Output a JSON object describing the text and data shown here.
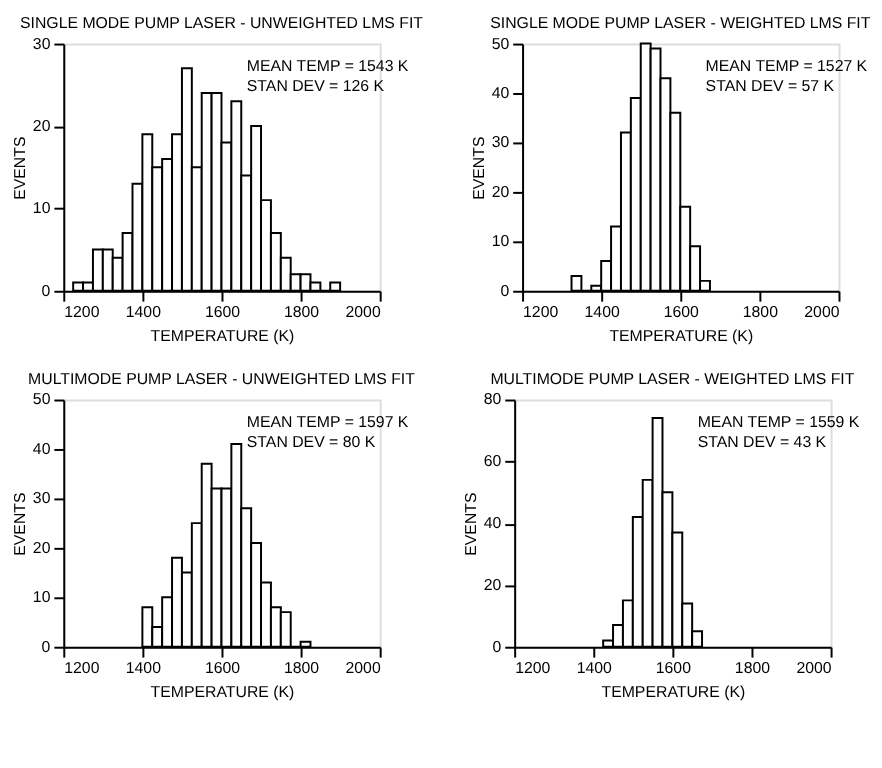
{
  "chart_data": [
    {
      "type": "histogram",
      "title": "SINGLE MODE PUMP LASER - UNWEIGHTED LMS FIT",
      "xlabel": "TEMPERATURE  (K)",
      "ylabel": "EVENTS",
      "annotations": [
        "MEAN TEMP = 1543 K",
        "STAN DEV = 126 K"
      ],
      "bins": [
        1225,
        1250,
        1275,
        1300,
        1325,
        1350,
        1375,
        1400,
        1425,
        1450,
        1475,
        1500,
        1525,
        1550,
        1575,
        1600,
        1625,
        1650,
        1675,
        1700,
        1725,
        1750,
        1775,
        1800,
        1825,
        1850,
        1875,
        1900
      ],
      "values": [
        1,
        1,
        5,
        5,
        4,
        7,
        13,
        19,
        15,
        16,
        19,
        27,
        15,
        24,
        24,
        18,
        23,
        14,
        20,
        11,
        7,
        4,
        2,
        2,
        1,
        0,
        1
      ],
      "color": "#ffffff",
      "xlim": [
        1200,
        2000
      ],
      "xticks": [
        1200,
        1400,
        1600,
        1800,
        2000
      ],
      "ylim": [
        0,
        30
      ],
      "yticks": [
        0,
        10,
        20,
        30
      ],
      "grid": false
    },
    {
      "type": "histogram",
      "title": "SINGLE MODE PUMP LASER - WEIGHTED LMS FIT",
      "xlabel": "TEMPERATURE  (K)",
      "ylabel": "EVENTS",
      "annotations": [
        "MEAN TEMP = 1527 K",
        "STAN DEV = 57 K"
      ],
      "bins": [
        1325,
        1350,
        1375,
        1400,
        1425,
        1450,
        1475,
        1500,
        1525,
        1550,
        1575,
        1600,
        1625,
        1650,
        1675
      ],
      "values": [
        3,
        0,
        1,
        6,
        13,
        32,
        39,
        50,
        49,
        43,
        36,
        17,
        9,
        2
      ],
      "color": "#ffffff",
      "xlim": [
        1200,
        2000
      ],
      "xticks": [
        1200,
        1400,
        1600,
        1800,
        2000
      ],
      "ylim": [
        0,
        50
      ],
      "yticks": [
        0,
        10,
        20,
        30,
        40,
        50
      ],
      "grid": false
    },
    {
      "type": "histogram",
      "title": "MULTIMODE PUMP LASER - UNWEIGHTED LMS FIT",
      "xlabel": "TEMPERATURE  (K)",
      "ylabel": "EVENTS",
      "annotations": [
        "MEAN TEMP = 1597 K",
        "STAN DEV = 80 K"
      ],
      "bins": [
        1400,
        1425,
        1450,
        1475,
        1500,
        1525,
        1550,
        1575,
        1600,
        1625,
        1650,
        1675,
        1700,
        1725,
        1750,
        1775,
        1800,
        1825
      ],
      "values": [
        8,
        4,
        10,
        18,
        15,
        25,
        37,
        32,
        32,
        41,
        28,
        21,
        13,
        8,
        7,
        0,
        1
      ],
      "color": "#ffffff",
      "xlim": [
        1200,
        2000
      ],
      "xticks": [
        1200,
        1400,
        1600,
        1800,
        2000
      ],
      "ylim": [
        0,
        50
      ],
      "yticks": [
        0,
        10,
        20,
        30,
        40,
        50
      ],
      "grid": false
    },
    {
      "type": "histogram",
      "title": "MULTIMODE PUMP LASER - WEIGHTED LMS FIT",
      "xlabel": "TEMPERATURE  (K)",
      "ylabel": "EVENTS",
      "annotations": [
        "MEAN TEMP = 1559 K",
        "STAN DEV = 43 K"
      ],
      "bins": [
        1425,
        1450,
        1475,
        1500,
        1525,
        1550,
        1575,
        1600,
        1625,
        1650,
        1675
      ],
      "values": [
        2,
        7,
        15,
        42,
        54,
        74,
        50,
        37,
        14,
        5
      ],
      "color": "#ffffff",
      "xlim": [
        1200,
        2000
      ],
      "xticks": [
        1200,
        1400,
        1600,
        1800,
        2000
      ],
      "ylim": [
        0,
        80
      ],
      "yticks": [
        0,
        20,
        40,
        60,
        80
      ],
      "grid": false
    }
  ]
}
